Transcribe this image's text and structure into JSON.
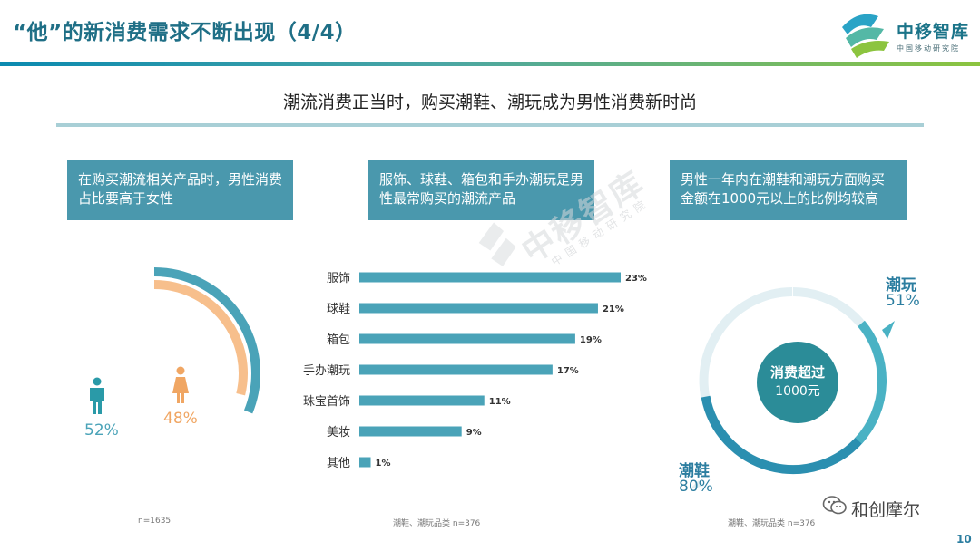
{
  "header": {
    "title": "“他”的新消费需求不断出现（4/4）",
    "logo_name": "中移智库",
    "logo_sub": "中国移动研究院",
    "colors": {
      "title": "#1f6f86",
      "accent_teal": "#4a98ad",
      "accent_green": "#8cc43f"
    }
  },
  "subtitle": "潮流消费正当时，购买潮鞋、潮玩成为男性消费新时尚",
  "callouts": {
    "left": "在购买潮流相关产品时，男性消费占比要高于女性",
    "middle": "服饰、球鞋、箱包和手办潮玩是男性最常购买的潮流产品",
    "right": "男性一年内在潮鞋和潮玩方面购买金额在1000元以上的比例均较高"
  },
  "gender_chart": {
    "male_icon": "male-person-icon",
    "female_icon": "female-person-icon",
    "male_pct": "52%",
    "female_pct": "48%",
    "male_value": 52,
    "female_value": 48,
    "male_color": "#4aa3b8",
    "female_color": "#f7bf8c",
    "note": "n=1635"
  },
  "chart_data": [
    {
      "type": "bar",
      "orientation": "horizontal",
      "categories": [
        "服饰",
        "球鞋",
        "箱包",
        "手办潮玩",
        "珠宝首饰",
        "美妆",
        "其他"
      ],
      "values": [
        23,
        21,
        19,
        17,
        11,
        9,
        1
      ],
      "data_labels": [
        "23%",
        "21%",
        "19%",
        "17%",
        "11%",
        "9%",
        "1%"
      ],
      "xlim": [
        0,
        23
      ],
      "color": "#4aa3b8",
      "note": "潮鞋、潮玩品类 n=376"
    }
  ],
  "purchase_ring": {
    "top_label": "潮玩",
    "top_pct": "51%",
    "top_value": 51,
    "bottom_label": "潮鞋",
    "bottom_pct": "80%",
    "bottom_value": 80,
    "center_line1": "消费超过",
    "center_line2": "1000元",
    "note": "潮鞋、潮玩品类 n=376"
  },
  "watermark": {
    "name": "中移智库",
    "sub": "中国移动研究院"
  },
  "wechat": {
    "icon": "wechat-icon",
    "name": "和创摩尔"
  },
  "page_number": "10"
}
